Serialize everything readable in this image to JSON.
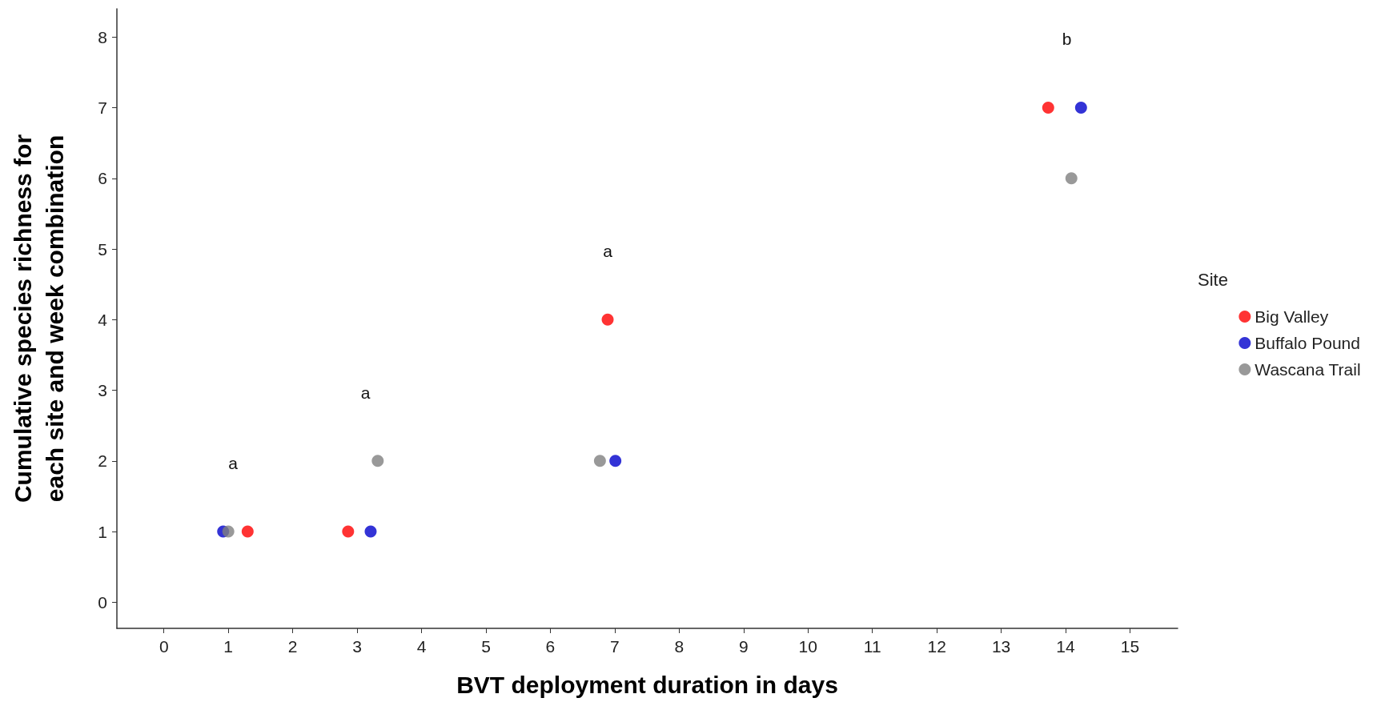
{
  "chart_data": {
    "type": "scatter",
    "xlabel": "BVT deployment duration in days",
    "ylabel": "Cumulative species richness for\neach site and week combination",
    "legend_title": "Site",
    "series": [
      {
        "name": "Big Valley",
        "color": "#ff0000",
        "x": [
          1.3,
          2.86,
          6.89,
          13.73
        ],
        "values": [
          1,
          1,
          4,
          7
        ]
      },
      {
        "name": "Buffalo Pound",
        "color": "#0000cc",
        "x": [
          0.92,
          3.21,
          7.01,
          14.24
        ],
        "values": [
          1,
          1,
          2,
          7
        ]
      },
      {
        "name": "Wascana Trail",
        "color": "#808080",
        "x": [
          1.0,
          3.32,
          6.77,
          14.09
        ],
        "values": [
          1,
          2,
          2,
          6
        ]
      }
    ],
    "annotations": [
      "a",
      "a",
      "a",
      "b"
    ],
    "xlim": [
      -0.73,
      15.74
    ],
    "xticks": [
      0,
      1,
      2,
      3,
      4,
      5,
      6,
      7,
      8,
      9,
      10,
      11,
      12,
      13,
      14,
      15
    ],
    "ylim": [
      -0.37,
      8.4
    ],
    "yticks": [
      0,
      1,
      2,
      3,
      4,
      5,
      6,
      7,
      8
    ],
    "grid": false,
    "legend": "right",
    "marker": "circle"
  }
}
